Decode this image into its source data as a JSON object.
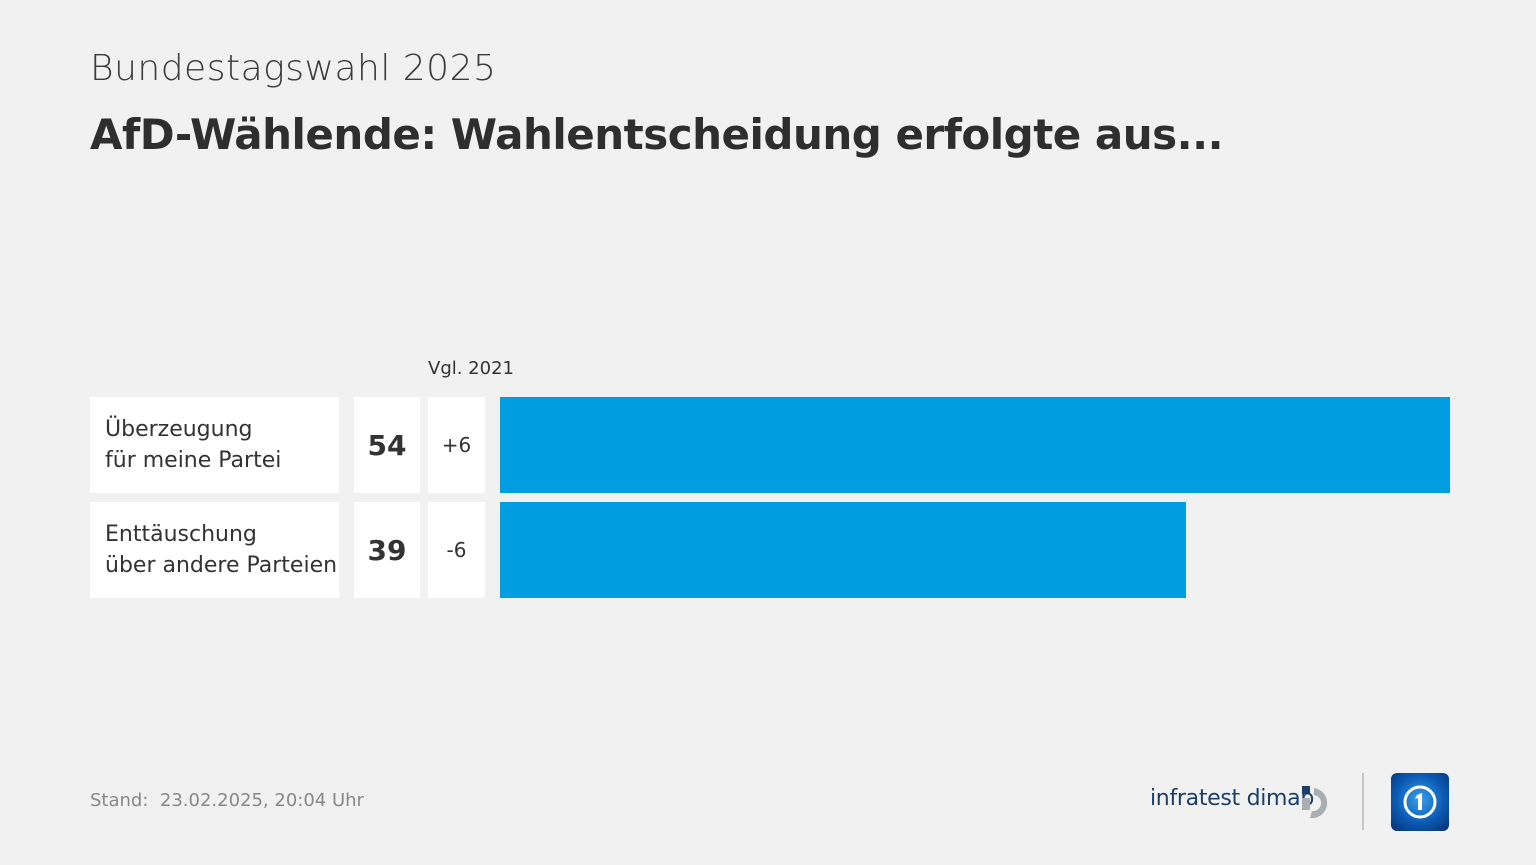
{
  "header": {
    "supertitle": "Bundestagswahl 2025",
    "title": "AfD-Wählende: Wahlentscheidung erfolgte aus..."
  },
  "chart_data": {
    "type": "bar",
    "orientation": "horizontal",
    "comparison_label": "Vgl. 2021",
    "categories": [
      [
        "Überzeugung",
        "für meine Partei"
      ],
      [
        "Enttäuschung",
        "über andere Parteien"
      ]
    ],
    "values": [
      54,
      39
    ],
    "value_labels": [
      "54",
      "39"
    ],
    "changes": [
      "+6",
      "-6"
    ],
    "bar_color": "#009ee0",
    "xlim": [
      0,
      54
    ],
    "grid": false
  },
  "footer": {
    "stand_label": "Stand:",
    "stand_value": "23.02.2025, 20:04 Uhr"
  },
  "logos": {
    "infratest": "infratest dimap",
    "ard": "tagesschau ARD 1"
  }
}
